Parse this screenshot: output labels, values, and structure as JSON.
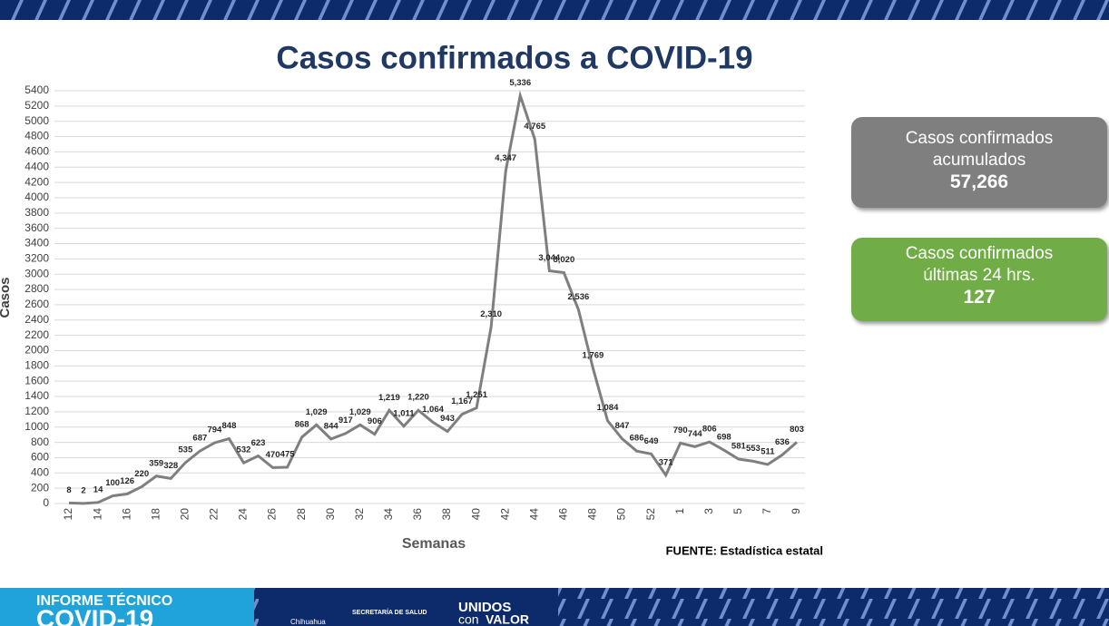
{
  "chart_data": {
    "type": "line",
    "title": "Casos confirmados a COVID-19",
    "x_label": "Semanas",
    "y_label": "Casos",
    "source": "FUENTE: Estadística estatal",
    "color": "#7f7f7f",
    "grid": true,
    "categories": [
      "12",
      null,
      "14",
      null,
      "16",
      null,
      "18",
      null,
      "20",
      null,
      "22",
      null,
      "24",
      null,
      "26",
      null,
      "28",
      null,
      "30",
      null,
      "32",
      null,
      "34",
      null,
      "36",
      null,
      "38",
      null,
      "40",
      null,
      "42",
      null,
      "44",
      null,
      "46",
      null,
      "48",
      null,
      "50",
      null,
      "52",
      null,
      "1",
      null,
      "3",
      null,
      "5",
      null,
      "7",
      null,
      "9"
    ],
    "values": [
      8,
      2,
      14,
      100,
      126,
      220,
      359,
      328,
      535,
      687,
      794,
      848,
      532,
      623,
      470,
      475,
      868,
      1029,
      844,
      917,
      1029,
      906,
      1219,
      1011,
      1220,
      1064,
      943,
      1167,
      1251,
      2310,
      4347,
      5336,
      4765,
      3044,
      3020,
      2536,
      1769,
      1084,
      847,
      686,
      649,
      371,
      790,
      744,
      806,
      698,
      581,
      553,
      511,
      636,
      803
    ],
    "value_labels": [
      "8",
      "2",
      "14",
      "100",
      "126",
      "220",
      "359",
      "328",
      "535",
      "687",
      "794",
      "848",
      "532",
      "623",
      "470",
      "475",
      "868",
      "1,029",
      "844",
      "917",
      "1,029",
      "906",
      "1,219",
      "1,011",
      "1,220",
      "1,064",
      "943",
      "1,167",
      "1,251",
      "2,310",
      "4,347",
      "5,336",
      "4,765",
      "3,044",
      "3,020",
      "2,536",
      "1,769",
      "1,084",
      "847",
      "686",
      "649",
      "371",
      "790",
      "744",
      "806",
      "698",
      "581",
      "553",
      "511",
      "636",
      "803"
    ],
    "ylim": [
      0,
      5400
    ],
    "yticks": [
      0,
      200,
      400,
      600,
      800,
      1000,
      1200,
      1400,
      1600,
      1800,
      2000,
      2200,
      2400,
      2600,
      2800,
      3000,
      3200,
      3400,
      3600,
      3800,
      4000,
      4200,
      4400,
      4600,
      4800,
      5000,
      5200,
      5400
    ]
  },
  "cards": [
    {
      "label": "Casos confirmados acumulados",
      "value": "57,266"
    },
    {
      "label": "Casos confirmados últimas 24 hrs.",
      "value": "127"
    }
  ],
  "footer": {
    "report": "INFORME TÉCNICO",
    "topic": "COVID-19",
    "city": "Chihuahua",
    "dept": "SECRETARÍA DE SALUD",
    "slogan1": "UNIDOS",
    "slogan2": "con",
    "slogan3": "VALOR"
  }
}
